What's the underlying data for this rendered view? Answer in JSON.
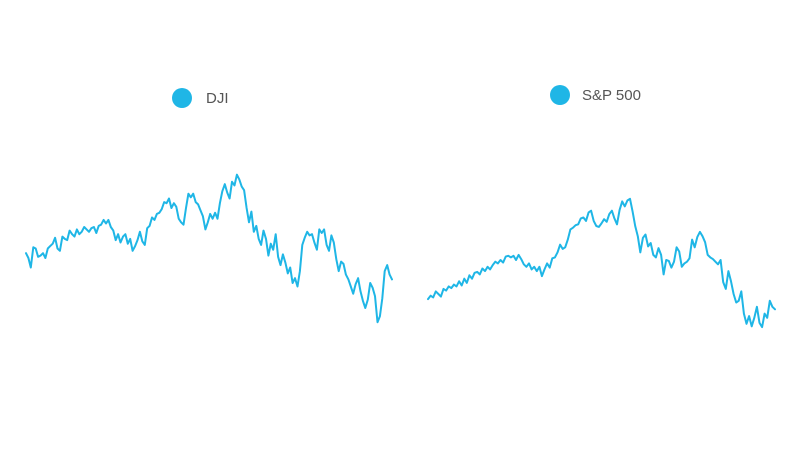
{
  "colors": {
    "series": "#1fb6e6",
    "legend_text": "#555555",
    "background": "#ffffff"
  },
  "chart_data": [
    {
      "type": "line",
      "title": "",
      "xlabel": "",
      "ylabel": "",
      "grid": false,
      "axes_visible": false,
      "legend_position": "top-center",
      "y_index_min": 0,
      "y_index_max": 100,
      "series": [
        {
          "name": "DJI",
          "values": [
            62,
            58,
            50,
            67,
            66,
            59,
            60,
            62,
            58,
            66,
            68,
            70,
            75,
            66,
            64,
            76,
            74,
            73,
            81,
            78,
            76,
            82,
            78,
            80,
            84,
            82,
            80,
            83,
            84,
            79,
            85,
            86,
            90,
            87,
            90,
            84,
            81,
            73,
            78,
            71,
            76,
            78,
            70,
            74,
            64,
            68,
            73,
            80,
            72,
            69,
            83,
            85,
            92,
            90,
            95,
            96,
            99,
            105,
            104,
            108,
            100,
            104,
            101,
            91,
            88,
            86,
            100,
            112,
            109,
            112,
            105,
            103,
            98,
            93,
            82,
            88,
            95,
            91,
            96,
            91,
            104,
            114,
            120,
            113,
            108,
            122,
            119,
            128,
            124,
            118,
            115,
            100,
            88,
            97,
            80,
            85,
            74,
            69,
            81,
            74,
            60,
            70,
            65,
            78,
            59,
            52,
            61,
            54,
            45,
            50,
            37,
            41,
            34,
            47,
            69,
            75,
            80,
            77,
            78,
            71,
            65,
            82,
            79,
            82,
            69,
            64,
            77,
            71,
            57,
            47,
            55,
            53,
            44,
            40,
            34,
            28,
            36,
            41,
            30,
            22,
            16,
            23,
            37,
            33,
            26,
            4,
            9,
            24,
            47,
            52,
            44,
            40
          ]
        },
        {
          "name": "S&P 500",
          "values": [
            34,
            38,
            36,
            43,
            40,
            37,
            46,
            44,
            49,
            47,
            51,
            49,
            55,
            50,
            58,
            53,
            62,
            58,
            65,
            66,
            63,
            70,
            67,
            72,
            69,
            74,
            78,
            76,
            80,
            77,
            84,
            85,
            83,
            85,
            80,
            86,
            81,
            75,
            72,
            76,
            69,
            72,
            67,
            72,
            61,
            69,
            76,
            71,
            82,
            83,
            89,
            98,
            93,
            95,
            104,
            116,
            118,
            121,
            122,
            129,
            130,
            126,
            136,
            138,
            126,
            120,
            119,
            123,
            128,
            125,
            134,
            138,
            129,
            122,
            139,
            149,
            143,
            150,
            152,
            137,
            120,
            108,
            89,
            106,
            110,
            96,
            100,
            86,
            83,
            94,
            86,
            63,
            80,
            79,
            71,
            78,
            95,
            90,
            72,
            76,
            78,
            82,
            104,
            95,
            107,
            113,
            108,
            101,
            86,
            83,
            81,
            78,
            75,
            80,
            54,
            46,
            67,
            55,
            40,
            30,
            32,
            43,
            17,
            5,
            14,
            2,
            12,
            25,
            6,
            1,
            17,
            12,
            32,
            25,
            22
          ]
        }
      ]
    }
  ]
}
